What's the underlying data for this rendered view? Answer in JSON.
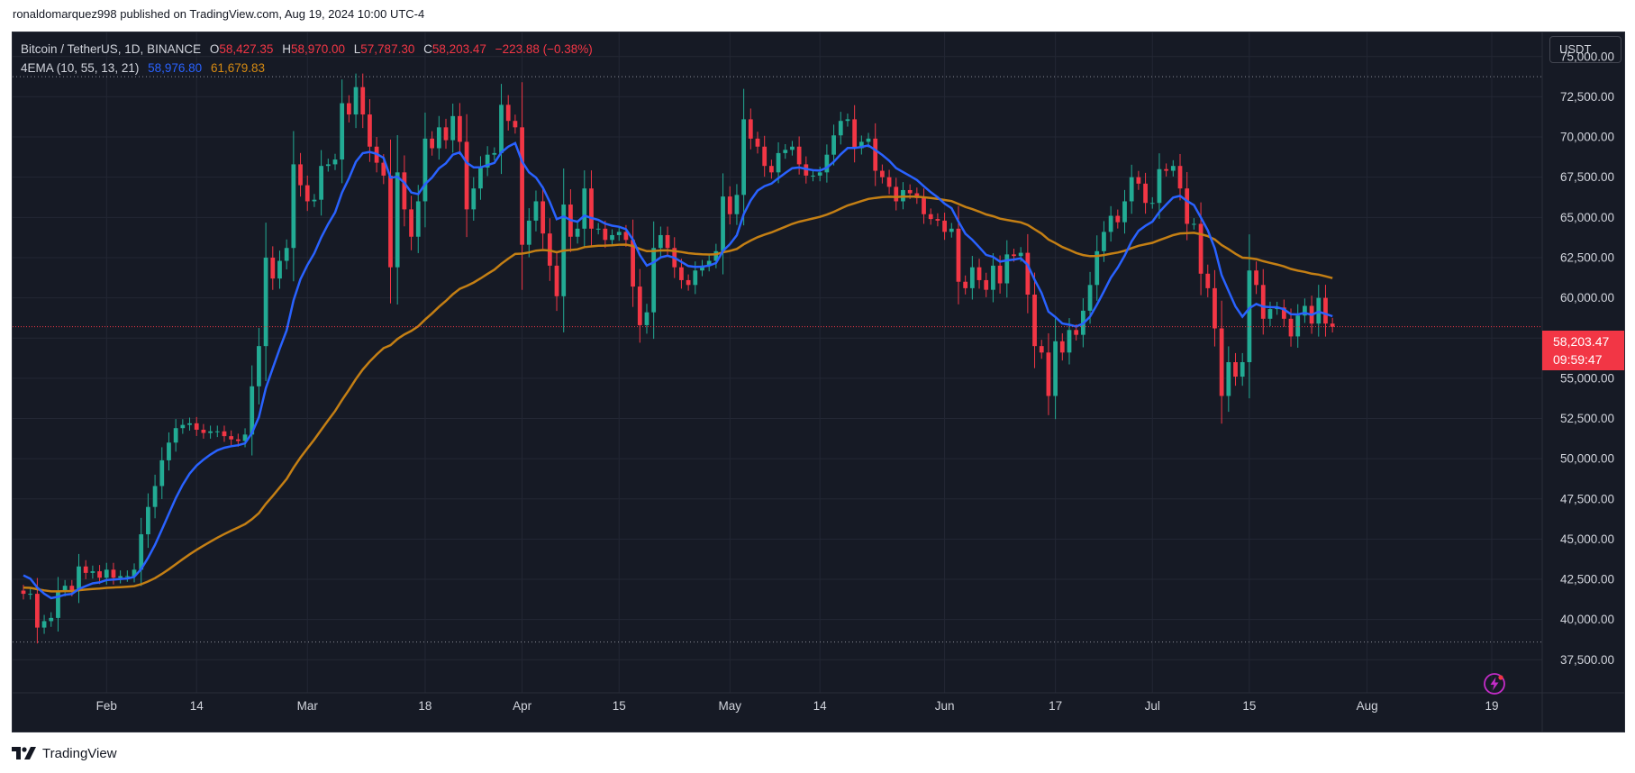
{
  "header": {
    "published_by": "ronaldomarquez998 published on TradingView.com, Aug 19, 2024 10:00 UTC-4"
  },
  "legend": {
    "symbol": "Bitcoin / TetherUS, 1D, BINANCE",
    "open_label": "O",
    "open": "58,427.35",
    "high_label": "H",
    "high": "58,970.00",
    "low_label": "L",
    "low": "57,787.30",
    "close_label": "C",
    "close": "58,203.47",
    "change": "−223.88 (−0.38%)",
    "indicator": "4EMA (10, 55, 13, 21)",
    "ema_fast_value": "58,976.80",
    "ema_slow_value": "61,679.83"
  },
  "currency_button": "USDT",
  "last_price_tag": {
    "price": "58,203.47",
    "countdown": "09:59:47"
  },
  "footer": {
    "brand": "TradingView"
  },
  "colors": {
    "background": "#161a25",
    "up": "#22ab94",
    "down": "#f23645",
    "ema_fast": "#2962ff",
    "ema_slow": "#c47f14",
    "axis_text": "#d1d4dc",
    "grid": "#232734"
  },
  "chart_data": {
    "type": "candlestick",
    "title": "Bitcoin / TetherUS, 1D, BINANCE",
    "y_ticks": [
      37500,
      40000,
      42500,
      45000,
      47500,
      50000,
      52500,
      55000,
      57500,
      60000,
      62500,
      65000,
      67500,
      70000,
      72500,
      75000
    ],
    "y_tick_labels": [
      "37,500.00",
      "40,000.00",
      "42,500.00",
      "45,000.00",
      "47,500.00",
      "50,000.00",
      "52,500.00",
      "55,000.00",
      "57,500.00",
      "60,000.00",
      "62,500.00",
      "65,000.00",
      "67,500.00",
      "70,000.00",
      "72,500.00",
      "75,000.00"
    ],
    "ylim": [
      35500,
      76500
    ],
    "x_range": [
      "2024-01-20",
      "2024-08-19"
    ],
    "x_ticks": [
      {
        "date": "2024-02-01",
        "label": "Feb"
      },
      {
        "date": "2024-02-14",
        "label": "14"
      },
      {
        "date": "2024-03-01",
        "label": "Mar"
      },
      {
        "date": "2024-03-18",
        "label": "18"
      },
      {
        "date": "2024-04-01",
        "label": "Apr"
      },
      {
        "date": "2024-04-15",
        "label": "15"
      },
      {
        "date": "2024-05-01",
        "label": "May"
      },
      {
        "date": "2024-05-14",
        "label": "14"
      },
      {
        "date": "2024-06-01",
        "label": "Jun"
      },
      {
        "date": "2024-06-17",
        "label": "17"
      },
      {
        "date": "2024-07-01",
        "label": "Jul"
      },
      {
        "date": "2024-07-15",
        "label": "15"
      },
      {
        "date": "2024-08-01",
        "label": "Aug"
      },
      {
        "date": "2024-08-19",
        "label": "19"
      }
    ],
    "dotted_levels": [
      73750,
      38600
    ],
    "last_price": 58203.47,
    "close_series_start": "2024-01-20",
    "close_series": [
      41600,
      41600,
      39500,
      39900,
      40100,
      41800,
      42100,
      41800,
      43300,
      42900,
      43000,
      42600,
      43100,
      42600,
      42700,
      42700,
      43100,
      45300,
      47000,
      48300,
      49900,
      51000,
      51900,
      52100,
      52200,
      51800,
      51600,
      51700,
      51700,
      51400,
      51200,
      51100,
      51500,
      54500,
      57000,
      62500,
      61200,
      62300,
      63100,
      68300,
      67000,
      66000,
      66100,
      68200,
      68300,
      68600,
      72100,
      71400,
      73100,
      71400,
      69400,
      68400,
      67600,
      61900,
      67800,
      65500,
      63800,
      66000,
      69900,
      69300,
      70600,
      69800,
      71300,
      69700,
      65500,
      66800,
      68100,
      68900,
      69000,
      72000,
      71000,
      70600,
      63300,
      64800,
      66000,
      64000,
      62000,
      60100,
      65800,
      63800,
      64300,
      66800,
      64300,
      64300,
      63600,
      63900,
      64100,
      63600,
      60700,
      58300,
      59100,
      63100,
      63900,
      63100,
      61900,
      61100,
      60800,
      61700,
      62000,
      62300,
      62900,
      66300,
      65200,
      66400,
      71100,
      69900,
      69400,
      68200,
      67800,
      69000,
      69200,
      69400,
      68300,
      67600,
      67600,
      67800,
      68900,
      70100,
      71000,
      71100,
      69300,
      69700,
      69900,
      67900,
      67500,
      66900,
      66000,
      66700,
      66500,
      66200,
      65200,
      64900,
      64800,
      64100,
      64300,
      61000,
      60600,
      61900,
      61100,
      60500,
      62000,
      60900,
      62700,
      62600,
      62800,
      60200,
      57000,
      56600,
      53900,
      57300,
      56600,
      58000,
      57700,
      59200,
      60800,
      62900,
      64100,
      65100,
      64700,
      66000,
      67500,
      67100,
      65900,
      65900,
      68000,
      67900,
      68200,
      66800,
      64600,
      64600,
      61500,
      60600,
      58100,
      53900,
      56000,
      55100,
      56000,
      61700,
      60800,
      58700,
      59300,
      59400,
      58700,
      57600,
      58900,
      59500,
      58400,
      60000,
      58400,
      58200
    ],
    "series": [
      {
        "name": "EMA 10",
        "last": 58976.8
      },
      {
        "name": "EMA 55",
        "last": 61679.83
      }
    ]
  }
}
